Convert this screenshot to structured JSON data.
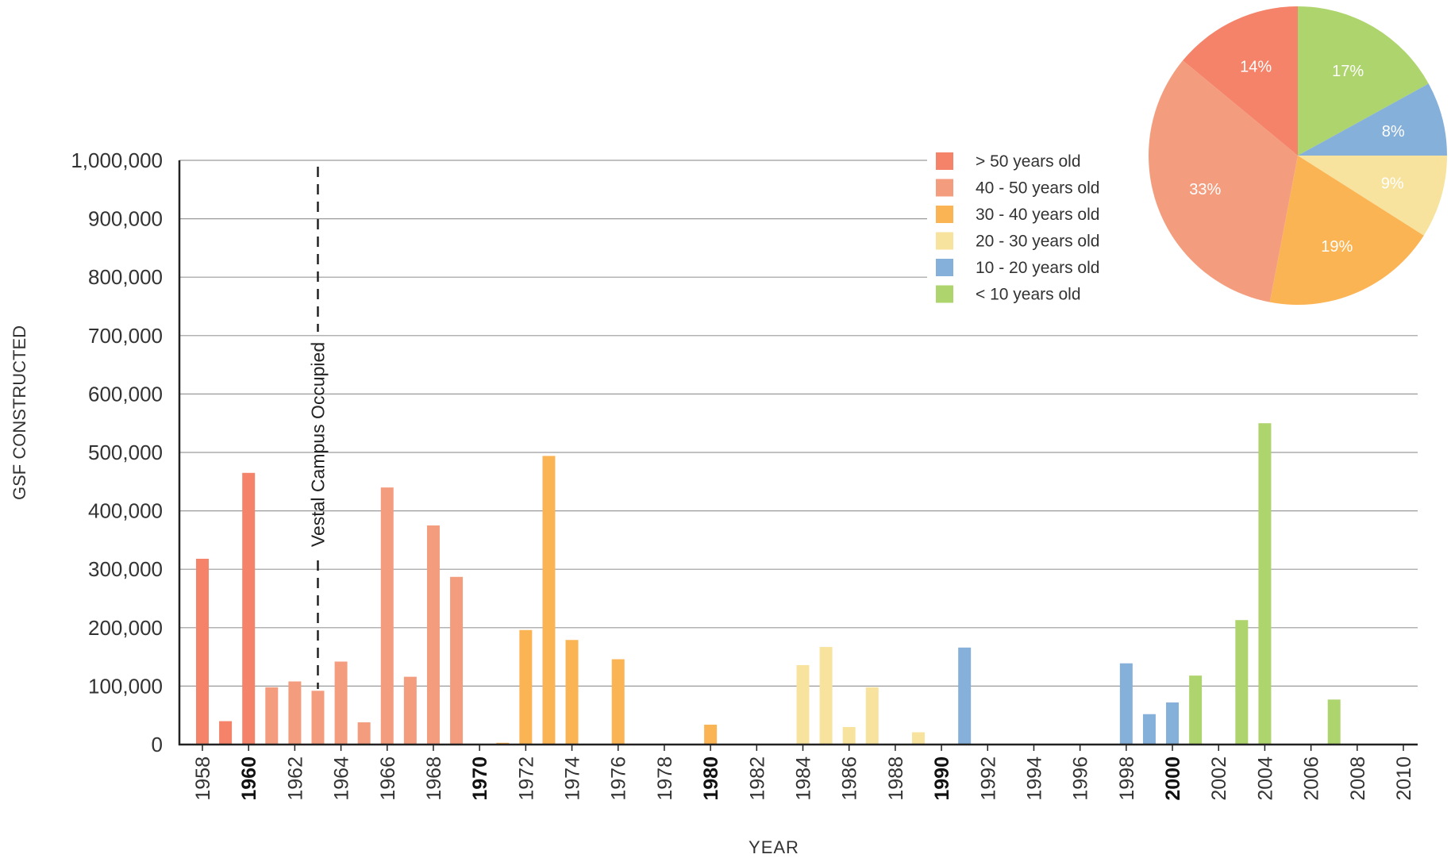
{
  "chart_data": [
    {
      "type": "bar",
      "xlabel": "YEAR",
      "ylabel": "GSF CONSTRUCTED",
      "ylim": [
        0,
        1000000
      ],
      "yticks": [
        0,
        100000,
        200000,
        300000,
        400000,
        500000,
        600000,
        700000,
        800000,
        900000,
        1000000
      ],
      "ytick_labels": [
        "0",
        "100,000",
        "200,000",
        "300,000",
        "400,000",
        "500,000",
        "600,000",
        "700,000",
        "800,000",
        "900,000",
        "1,000,000"
      ],
      "xlim": [
        1958,
        2010
      ],
      "xtick_labels": [
        "1958",
        "1960",
        "1962",
        "1964",
        "1966",
        "1968",
        "1970",
        "1972",
        "1974",
        "1976",
        "1978",
        "1980",
        "1982",
        "1984",
        "1986",
        "1988",
        "1990",
        "1992",
        "1994",
        "1996",
        "1998",
        "2000",
        "2002",
        "2004",
        "2006",
        "2008",
        "2010"
      ],
      "xtick_bold": [
        "1960",
        "1970",
        "1980",
        "1990",
        "2000"
      ],
      "grid": true,
      "legend_position": "top-right",
      "legend": [
        {
          "label": "> 50 years old",
          "color": "#F4836A"
        },
        {
          "label": "40 - 50 years old",
          "color": "#F49D7E"
        },
        {
          "label": "30 - 40 years old",
          "color": "#FBB454"
        },
        {
          "label": "20 - 30 years old",
          "color": "#F7E39D"
        },
        {
          "label": "10 - 20 years old",
          "color": "#85B0DA"
        },
        {
          "label": "< 10 years old",
          "color": "#AED46E"
        }
      ],
      "annotation": {
        "text": "Vestal Campus Occupied",
        "x": 1963
      },
      "bars": [
        {
          "year": 1958,
          "value": 318000,
          "group": 0
        },
        {
          "year": 1959,
          "value": 40000,
          "group": 0
        },
        {
          "year": 1960,
          "value": 465000,
          "group": 0
        },
        {
          "year": 1961,
          "value": 98000,
          "group": 1
        },
        {
          "year": 1962,
          "value": 108000,
          "group": 1
        },
        {
          "year": 1963,
          "value": 92000,
          "group": 1
        },
        {
          "year": 1964,
          "value": 142000,
          "group": 1
        },
        {
          "year": 1965,
          "value": 38000,
          "group": 1
        },
        {
          "year": 1966,
          "value": 440000,
          "group": 1
        },
        {
          "year": 1967,
          "value": 116000,
          "group": 1
        },
        {
          "year": 1968,
          "value": 375000,
          "group": 1
        },
        {
          "year": 1969,
          "value": 287000,
          "group": 1
        },
        {
          "year": 1971,
          "value": 3000,
          "group": 2
        },
        {
          "year": 1972,
          "value": 196000,
          "group": 2
        },
        {
          "year": 1973,
          "value": 494000,
          "group": 2
        },
        {
          "year": 1974,
          "value": 179000,
          "group": 2
        },
        {
          "year": 1976,
          "value": 146000,
          "group": 2
        },
        {
          "year": 1980,
          "value": 34000,
          "group": 2
        },
        {
          "year": 1984,
          "value": 136000,
          "group": 3
        },
        {
          "year": 1985,
          "value": 167000,
          "group": 3
        },
        {
          "year": 1986,
          "value": 30000,
          "group": 3
        },
        {
          "year": 1987,
          "value": 98000,
          "group": 3
        },
        {
          "year": 1989,
          "value": 21000,
          "group": 3
        },
        {
          "year": 1991,
          "value": 166000,
          "group": 4
        },
        {
          "year": 1998,
          "value": 139000,
          "group": 4
        },
        {
          "year": 1999,
          "value": 52000,
          "group": 4
        },
        {
          "year": 2000,
          "value": 72000,
          "group": 4
        },
        {
          "year": 2001,
          "value": 118000,
          "group": 5
        },
        {
          "year": 2003,
          "value": 213000,
          "group": 5
        },
        {
          "year": 2004,
          "value": 550000,
          "group": 5
        },
        {
          "year": 2007,
          "value": 77000,
          "group": 5
        }
      ]
    },
    {
      "type": "pie",
      "slices": [
        {
          "label": "17%",
          "value": 17,
          "color": "#AED46E"
        },
        {
          "label": "8%",
          "value": 8,
          "color": "#85B0DA"
        },
        {
          "label": "9%",
          "value": 9,
          "color": "#F7E39D"
        },
        {
          "label": "19%",
          "value": 19,
          "color": "#FBB454"
        },
        {
          "label": "33%",
          "value": 33,
          "color": "#F49D7E"
        },
        {
          "label": "14%",
          "value": 14,
          "color": "#F4836A"
        }
      ]
    }
  ]
}
